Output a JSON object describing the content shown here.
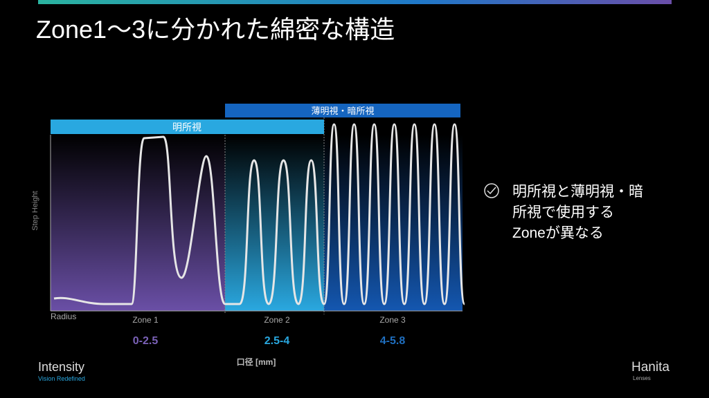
{
  "header": {
    "title": "Zone1～3に分かれた綿密な構造"
  },
  "diagram": {
    "band_photopic": "明所視",
    "band_mesopic": "薄明視・暗所視",
    "y_axis_label": "Step Height",
    "x_start_label": "Radius",
    "zones": [
      {
        "name": "Zone 1",
        "range": "0-2.5"
      },
      {
        "name": "Zone 2",
        "range": "2.5-4"
      },
      {
        "name": "Zone 3",
        "range": "4-5.8"
      }
    ],
    "x_axis_label": "口径 [mm]"
  },
  "bullet": {
    "lines": [
      "明所視と薄明視・暗",
      "所視で使用する",
      "Zoneが異なる"
    ]
  },
  "footer": {
    "left_brand": "Intensity",
    "left_tagline": "Vision Redefined",
    "right_brand": "Hanita",
    "right_sub": "Lenses"
  }
}
